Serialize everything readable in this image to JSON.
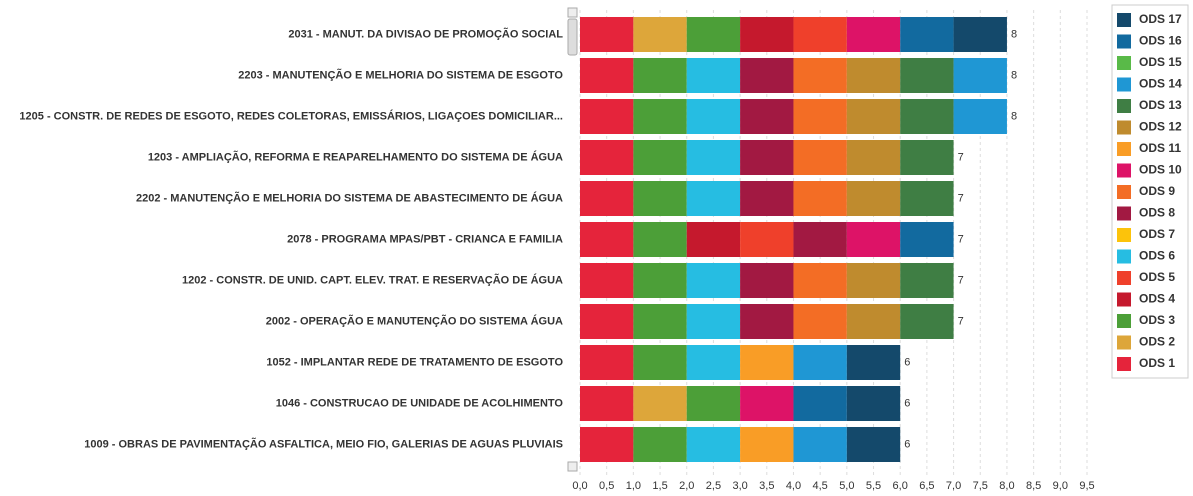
{
  "chart_data": {
    "type": "bar",
    "orientation": "horizontal",
    "stacked": true,
    "categories": [
      "2031 - MANUT. DA DIVISAO DE PROMOÇÃO SOCIAL",
      "2203 - MANUTENÇÃO E MELHORIA DO SISTEMA DE ESGOTO",
      "1205 - CONSTR. DE REDES DE ESGOTO, REDES COLETORAS, EMISSÁRIOS, LIGAÇOES DOMICILIAR...",
      "1203 - AMPLIAÇÃO, REFORMA E REAPARELHAMENTO DO SISTEMA DE ÁGUA",
      "2202 - MANUTENÇÃO E MELHORIA DO SISTEMA DE ABASTECIMENTO DE ÁGUA",
      "2078 - PROGRAMA MPAS/PBT - CRIANCA E FAMILIA",
      "1202 - CONSTR. DE UNID. CAPT. ELEV. TRAT. E RESERVAÇÃO DE ÁGUA",
      "2002 - OPERAÇÃO E MANUTENÇÃO DO SISTEMA ÁGUA",
      "1052 - IMPLANTAR REDE DE TRATAMENTO DE ESGOTO",
      "1046 - CONSTRUCAO DE UNIDADE DE ACOLHIMENTO",
      "1009 - OBRAS DE PAVIMENTAÇÃO ASFALTICA, MEIO FIO, GALERIAS DE AGUAS PLUVIAIS"
    ],
    "series": [
      {
        "name": "ODS 1",
        "color": "#e5243b",
        "values": [
          1,
          1,
          1,
          1,
          1,
          1,
          1,
          1,
          1,
          1,
          1
        ]
      },
      {
        "name": "ODS 2",
        "color": "#dda63a",
        "values": [
          1,
          null,
          null,
          null,
          null,
          null,
          null,
          null,
          null,
          1,
          null
        ]
      },
      {
        "name": "ODS 3",
        "color": "#4c9f38",
        "values": [
          1,
          1,
          1,
          1,
          1,
          1,
          1,
          1,
          1,
          1,
          1
        ]
      },
      {
        "name": "ODS 4",
        "color": "#c5192d",
        "values": [
          1,
          null,
          null,
          null,
          null,
          1,
          null,
          null,
          null,
          null,
          null
        ]
      },
      {
        "name": "ODS 5",
        "color": "#ef402b",
        "values": [
          1,
          null,
          null,
          null,
          null,
          1,
          null,
          null,
          null,
          null,
          null
        ]
      },
      {
        "name": "ODS 6",
        "color": "#26bde2",
        "values": [
          null,
          1,
          1,
          1,
          1,
          null,
          1,
          1,
          1,
          null,
          1
        ]
      },
      {
        "name": "ODS 7",
        "color": "#fcc30b",
        "values": [
          null,
          null,
          null,
          null,
          null,
          null,
          null,
          null,
          null,
          null,
          null
        ]
      },
      {
        "name": "ODS 8",
        "color": "#a21942",
        "values": [
          null,
          1,
          1,
          1,
          1,
          1,
          1,
          1,
          null,
          null,
          null
        ]
      },
      {
        "name": "ODS 9",
        "color": "#f36d25",
        "values": [
          null,
          1,
          1,
          1,
          1,
          null,
          1,
          1,
          null,
          null,
          null
        ]
      },
      {
        "name": "ODS 10",
        "color": "#dd1367",
        "values": [
          1,
          null,
          null,
          null,
          null,
          1,
          null,
          null,
          null,
          1,
          null
        ]
      },
      {
        "name": "ODS 11",
        "color": "#f99d26",
        "values": [
          null,
          null,
          null,
          null,
          null,
          null,
          null,
          null,
          1,
          null,
          1
        ]
      },
      {
        "name": "ODS 12",
        "color": "#bf8b2e",
        "values": [
          null,
          1,
          1,
          1,
          1,
          null,
          1,
          1,
          null,
          null,
          null
        ]
      },
      {
        "name": "ODS 13",
        "color": "#3f7e44",
        "values": [
          null,
          1,
          1,
          1,
          1,
          null,
          1,
          1,
          null,
          null,
          null
        ]
      },
      {
        "name": "ODS 14",
        "color": "#1f97d4",
        "values": [
          null,
          1,
          1,
          null,
          null,
          null,
          null,
          null,
          1,
          null,
          1
        ]
      },
      {
        "name": "ODS 15",
        "color": "#59ba48",
        "values": [
          null,
          null,
          null,
          null,
          null,
          null,
          null,
          null,
          null,
          null,
          null
        ]
      },
      {
        "name": "ODS 16",
        "color": "#126a9f",
        "values": [
          1,
          null,
          null,
          null,
          null,
          1,
          null,
          null,
          null,
          1,
          null
        ]
      },
      {
        "name": "ODS 17",
        "color": "#14496b",
        "values": [
          1,
          null,
          null,
          null,
          null,
          null,
          null,
          null,
          1,
          1,
          1
        ]
      }
    ],
    "totals": [
      8,
      8,
      8,
      7,
      7,
      7,
      7,
      7,
      6,
      6,
      6
    ],
    "xlim": [
      0,
      9.5
    ],
    "xticks": [
      {
        "value": 0,
        "label": "0,0"
      },
      {
        "value": 0.5,
        "label": "0,5"
      },
      {
        "value": 1,
        "label": "1,0"
      },
      {
        "value": 1.5,
        "label": "1,5"
      },
      {
        "value": 2,
        "label": "2,0"
      },
      {
        "value": 2.5,
        "label": "2,5"
      },
      {
        "value": 3,
        "label": "3,0"
      },
      {
        "value": 3.5,
        "label": "3,5"
      },
      {
        "value": 4,
        "label": "4,0"
      },
      {
        "value": 4.5,
        "label": "4,5"
      },
      {
        "value": 5,
        "label": "5,0"
      },
      {
        "value": 5.5,
        "label": "5,5"
      },
      {
        "value": 6,
        "label": "6,0"
      },
      {
        "value": 6.5,
        "label": "6,5"
      },
      {
        "value": 7,
        "label": "7,0"
      },
      {
        "value": 7.5,
        "label": "7,5"
      },
      {
        "value": 8,
        "label": "8,0"
      },
      {
        "value": 8.5,
        "label": "8,5"
      },
      {
        "value": 9,
        "label": "9,0"
      },
      {
        "value": 9.5,
        "label": "9,5"
      }
    ],
    "grid": true,
    "legend": "right"
  }
}
